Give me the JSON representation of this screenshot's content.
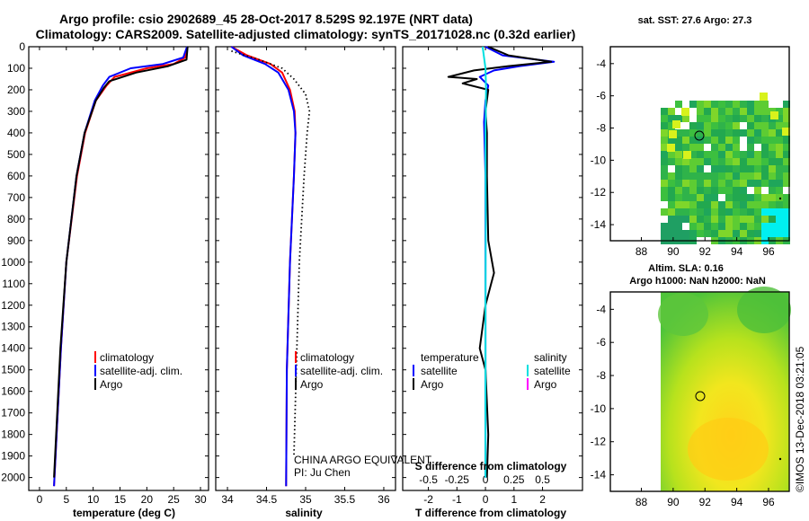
{
  "titles": {
    "line1": "Argo profile: csio 2902689_45 28-Oct-2017 8.529S 92.197E (NRT data)",
    "line2": "Climatology: CARS2009. Satellite-adjusted climatology: synTS_20171028.nc (0.32d earlier)"
  },
  "colors": {
    "climatology": "#ff0000",
    "satellite": "#0000ff",
    "argo": "#000000",
    "salinity_satellite": "#00e0e0",
    "salinity_argo": "#ff00ff"
  },
  "depth_ticks": [
    "0",
    "100",
    "200",
    "300",
    "400",
    "500",
    "600",
    "700",
    "800",
    "900",
    "1000",
    "1100",
    "1200",
    "1300",
    "1400",
    "1500",
    "1600",
    "1700",
    "1800",
    "1900",
    "2000"
  ],
  "chart_data": [
    {
      "type": "line",
      "name": "temperature",
      "xlabel": "temperature (deg C)",
      "xlim": [
        -2,
        31.5
      ],
      "ylim": [
        0,
        2060
      ],
      "xticks": [
        "0",
        "5",
        "10",
        "15",
        "20",
        "25",
        "30"
      ],
      "legend": [
        "climatology",
        "satellite-adj. clim.",
        "Argo"
      ],
      "series": [
        {
          "name": "climatology",
          "depth": [
            0,
            50,
            80,
            100,
            140,
            180,
            250,
            400,
            600,
            1000,
            1400,
            2040
          ],
          "values": [
            27.5,
            27.2,
            25,
            20,
            14,
            12.5,
            10.5,
            8.5,
            7,
            5,
            4,
            2.7
          ]
        },
        {
          "name": "satellite-adj. clim.",
          "depth": [
            0,
            50,
            80,
            100,
            140,
            180,
            250,
            400,
            600,
            1000,
            1400,
            2040
          ],
          "values": [
            27.5,
            26.8,
            23,
            17,
            13,
            11.8,
            10.3,
            8.4,
            6.9,
            5,
            4,
            2.7
          ]
        },
        {
          "name": "Argo",
          "depth": [
            0,
            60,
            90,
            120,
            160,
            190,
            250,
            400,
            600,
            1000,
            1400,
            2000
          ],
          "values": [
            27.6,
            27.4,
            24,
            18,
            13,
            12,
            10.5,
            8.4,
            6.9,
            5,
            3.9,
            2.7
          ]
        }
      ]
    },
    {
      "type": "line",
      "name": "salinity",
      "xlabel": "salinity",
      "xlim": [
        33.85,
        36.15
      ],
      "ylim": [
        0,
        2060
      ],
      "xticks": [
        "34",
        "34.5",
        "35",
        "35.5",
        "36"
      ],
      "legend": [
        "climatology",
        "satellite-adj. clim.",
        "Argo"
      ],
      "annotation": [
        "CHINA ARGO EQUIVALENT",
        "PI: Ju Chen"
      ],
      "series": [
        {
          "name": "climatology",
          "depth": [
            0,
            40,
            80,
            120,
            200,
            300,
            400,
            600,
            1000,
            1500,
            2040
          ],
          "values": [
            34.05,
            34.25,
            34.55,
            34.7,
            34.8,
            34.86,
            34.87,
            34.85,
            34.8,
            34.76,
            34.75
          ]
        },
        {
          "name": "satellite-adj. clim.",
          "depth": [
            0,
            40,
            80,
            120,
            200,
            300,
            400,
            600,
            1000,
            1500,
            2040
          ],
          "values": [
            34.05,
            34.2,
            34.48,
            34.65,
            34.78,
            34.85,
            34.87,
            34.85,
            34.8,
            34.76,
            34.75
          ]
        },
        {
          "name": "Argo",
          "depth": [
            20,
            60,
            100,
            150,
            220,
            300,
            400,
            600,
            1000,
            1500,
            1900
          ],
          "values": [
            34.05,
            34.4,
            34.7,
            34.85,
            35,
            35.05,
            35.02,
            34.98,
            34.92,
            34.88,
            34.85
          ]
        }
      ]
    },
    {
      "type": "line",
      "name": "difference",
      "xlabel": "T difference from climatology",
      "xlabel2": "S difference from climatology",
      "xlim": [
        -2.9,
        3.4
      ],
      "ylim": [
        0,
        2060
      ],
      "xticks": [
        "-2",
        "-1",
        "0",
        "1",
        "2"
      ],
      "xticks2": [
        "-0.5",
        "-0.25",
        "0",
        "0.25",
        "0.5"
      ],
      "legend_temperature": {
        "title": "temperature",
        "items": [
          "satellite",
          "Argo"
        ]
      },
      "legend_salinity": {
        "title": "salinity",
        "items": [
          "satellite",
          "Argo"
        ]
      },
      "series": [
        {
          "name": "T satellite",
          "depth": [
            0,
            40,
            70,
            90,
            110,
            140,
            180,
            250,
            350,
            600,
            1000,
            1500,
            2000
          ],
          "values": [
            0,
            0.6,
            2.4,
            1.2,
            0.3,
            -0.2,
            0.1,
            0,
            -0.05,
            0,
            0,
            0,
            0
          ]
        },
        {
          "name": "T Argo",
          "depth": [
            0,
            40,
            70,
            90,
            110,
            140,
            150,
            170,
            200,
            300,
            400,
            600,
            900,
            1050,
            1100,
            1200,
            1400,
            1500,
            1800,
            2000
          ],
          "values": [
            0.1,
            0.8,
            2.3,
            0.8,
            -0.4,
            -1.3,
            -0.3,
            -0.8,
            0.1,
            0,
            0.05,
            0.05,
            0.1,
            0.3,
            0.2,
            0,
            -0.2,
            0,
            0.1,
            0.05
          ]
        },
        {
          "name": "S satellite",
          "depth": [
            0,
            50,
            100,
            200,
            400,
            800,
            1200,
            1600,
            2000
          ],
          "values": [
            -0.1,
            -0.05,
            0,
            0.02,
            0,
            0.01,
            0,
            0,
            0
          ]
        }
      ]
    }
  ],
  "map_top": {
    "title": "sat. SST: 27.6 Argo: 27.3",
    "yticks": [
      "-4",
      "-6",
      "-8",
      "-10",
      "-12",
      "-14"
    ],
    "xticks": [
      "88",
      "90",
      "92",
      "94",
      "96"
    ]
  },
  "map_bottom": {
    "title1": "Altim. SLA: 0.16",
    "title2": "Argo h1000: NaN h2000: NaN",
    "yticks": [
      "-4",
      "-6",
      "-8",
      "-10",
      "-12",
      "-14"
    ],
    "xticks": [
      "88",
      "90",
      "92",
      "94",
      "96"
    ]
  },
  "watermark": "©IMOS 13-Dec-2018 03:21:05"
}
